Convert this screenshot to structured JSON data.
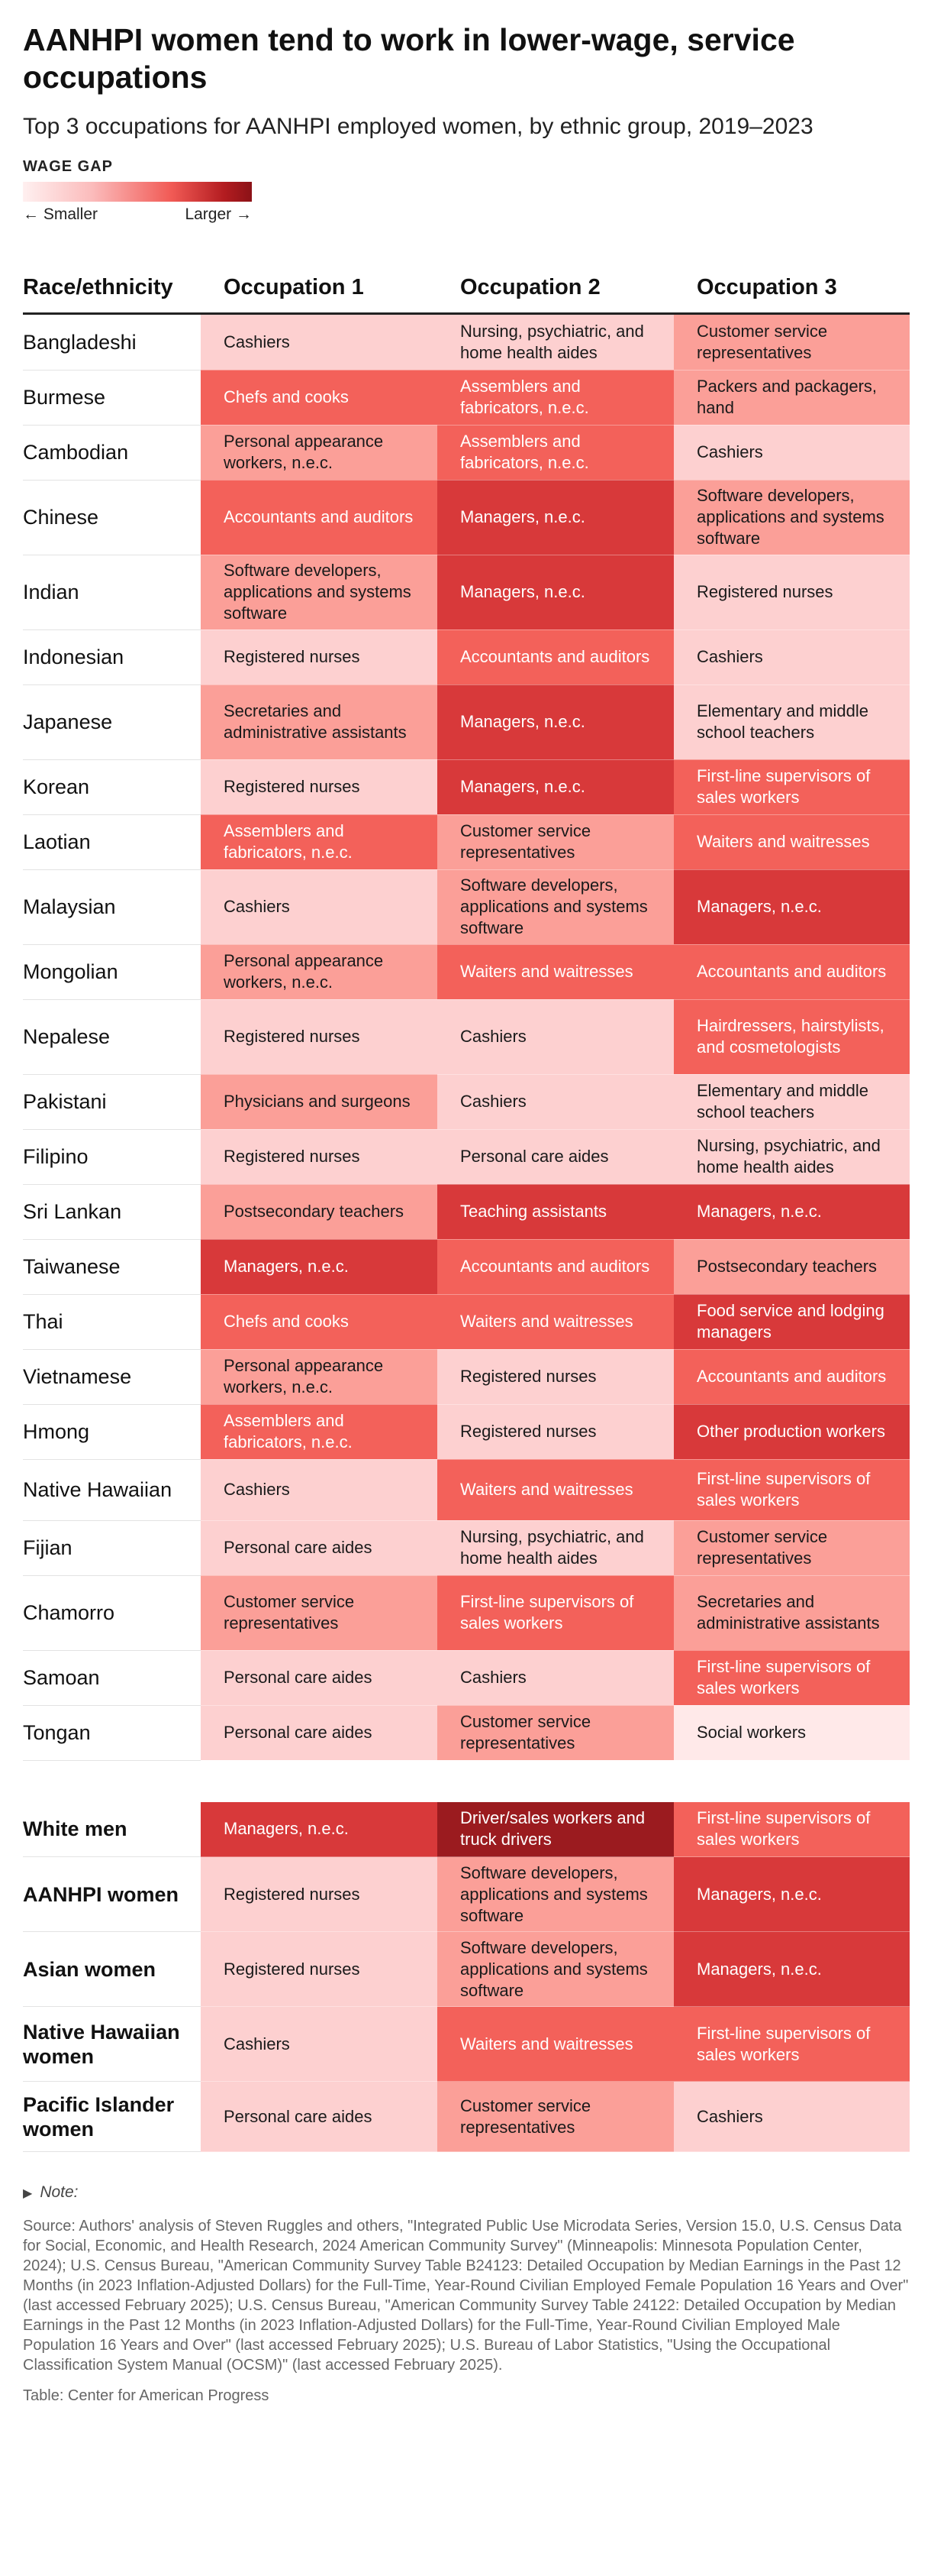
{
  "title": "AANHPI women tend to work in lower-wage, service occupations",
  "subtitle": "Top 3 occupations for AANHPI employed women, by ethnic group, 2019–2023",
  "legend": {
    "title": "WAGE GAP",
    "smaller": "← Smaller",
    "larger": "Larger →"
  },
  "headers": [
    "Race/ethnicity",
    "Occupation 1",
    "Occupation 2",
    "Occupation 3"
  ],
  "level_colors": {
    "0": "#ffe9e9",
    "1": "#fdd0d0",
    "2": "#fb9f98",
    "3": "#f3615a",
    "4": "#d8393a",
    "5": "#9b1b1f"
  },
  "chart_data": {
    "type": "table",
    "color_scale": "wage gap",
    "groups": [
      {
        "rows": [
          {
            "name": "Bangladeshi",
            "cells": [
              {
                "text": "Cashiers",
                "level": 1
              },
              {
                "text": "Nursing, psychiatric, and home health aides",
                "level": 1
              },
              {
                "text": "Customer service representatives",
                "level": 2
              }
            ]
          },
          {
            "name": "Burmese",
            "cells": [
              {
                "text": "Chefs and cooks",
                "level": 3
              },
              {
                "text": "Assemblers and fabricators, n.e.c.",
                "level": 3
              },
              {
                "text": "Packers and packagers, hand",
                "level": 2
              }
            ]
          },
          {
            "name": "Cambodian",
            "cells": [
              {
                "text": "Personal appearance workers, n.e.c.",
                "level": 2
              },
              {
                "text": "Assemblers and fabricators, n.e.c.",
                "level": 3
              },
              {
                "text": "Cashiers",
                "level": 1
              }
            ]
          },
          {
            "name": "Chinese",
            "cells": [
              {
                "text": "Accountants and auditors",
                "level": 3
              },
              {
                "text": "Managers, n.e.c.",
                "level": 4
              },
              {
                "text": "Software developers, applications and systems software",
                "level": 2
              }
            ]
          },
          {
            "name": "Indian",
            "cells": [
              {
                "text": "Software developers, applications and systems software",
                "level": 2
              },
              {
                "text": "Managers, n.e.c.",
                "level": 4
              },
              {
                "text": "Registered nurses",
                "level": 1
              }
            ]
          },
          {
            "name": "Indonesian",
            "cells": [
              {
                "text": "Registered nurses",
                "level": 1
              },
              {
                "text": "Accountants and auditors",
                "level": 3
              },
              {
                "text": "Cashiers",
                "level": 1
              }
            ]
          },
          {
            "name": "Japanese",
            "cells": [
              {
                "text": "Secretaries and administrative assistants",
                "level": 2
              },
              {
                "text": "Managers, n.e.c.",
                "level": 4
              },
              {
                "text": "Elementary and middle school teachers",
                "level": 1
              }
            ]
          },
          {
            "name": "Korean",
            "cells": [
              {
                "text": "Registered nurses",
                "level": 1
              },
              {
                "text": "Managers, n.e.c.",
                "level": 4
              },
              {
                "text": "First-line supervisors of sales workers",
                "level": 3
              }
            ]
          },
          {
            "name": "Laotian",
            "cells": [
              {
                "text": "Assemblers and fabricators, n.e.c.",
                "level": 3
              },
              {
                "text": "Customer service representatives",
                "level": 2
              },
              {
                "text": "Waiters and waitresses",
                "level": 3
              }
            ]
          },
          {
            "name": "Malaysian",
            "cells": [
              {
                "text": "Cashiers",
                "level": 1
              },
              {
                "text": "Software developers, applications and systems software",
                "level": 2
              },
              {
                "text": "Managers, n.e.c.",
                "level": 4
              }
            ]
          },
          {
            "name": "Mongolian",
            "cells": [
              {
                "text": "Personal appearance workers, n.e.c.",
                "level": 2
              },
              {
                "text": "Waiters and waitresses",
                "level": 3
              },
              {
                "text": "Accountants and auditors",
                "level": 3
              }
            ]
          },
          {
            "name": "Nepalese",
            "cells": [
              {
                "text": "Registered nurses",
                "level": 1
              },
              {
                "text": "Cashiers",
                "level": 1
              },
              {
                "text": "Hairdressers, hairstylists, and cosmetologists",
                "level": 3
              }
            ]
          },
          {
            "name": "Pakistani",
            "cells": [
              {
                "text": "Physicians and surgeons",
                "level": 2
              },
              {
                "text": "Cashiers",
                "level": 1
              },
              {
                "text": "Elementary and middle school teachers",
                "level": 1
              }
            ]
          },
          {
            "name": "Filipino",
            "cells": [
              {
                "text": "Registered nurses",
                "level": 1
              },
              {
                "text": "Personal care aides",
                "level": 1
              },
              {
                "text": "Nursing, psychiatric, and home health aides",
                "level": 1
              }
            ]
          },
          {
            "name": "Sri Lankan",
            "cells": [
              {
                "text": "Postsecondary teachers",
                "level": 2
              },
              {
                "text": "Teaching assistants",
                "level": 4
              },
              {
                "text": "Managers, n.e.c.",
                "level": 4
              }
            ]
          },
          {
            "name": "Taiwanese",
            "cells": [
              {
                "text": "Managers, n.e.c.",
                "level": 4
              },
              {
                "text": "Accountants and auditors",
                "level": 3
              },
              {
                "text": "Postsecondary teachers",
                "level": 2
              }
            ]
          },
          {
            "name": "Thai",
            "cells": [
              {
                "text": "Chefs and cooks",
                "level": 3
              },
              {
                "text": "Waiters and waitresses",
                "level": 3
              },
              {
                "text": "Food service and lodging managers",
                "level": 4
              }
            ]
          },
          {
            "name": "Vietnamese",
            "cells": [
              {
                "text": "Personal appearance workers, n.e.c.",
                "level": 2
              },
              {
                "text": "Registered nurses",
                "level": 1
              },
              {
                "text": "Accountants and auditors",
                "level": 3
              }
            ]
          },
          {
            "name": "Hmong",
            "cells": [
              {
                "text": "Assemblers and fabricators, n.e.c.",
                "level": 3
              },
              {
                "text": "Registered nurses",
                "level": 1
              },
              {
                "text": "Other production workers",
                "level": 4
              }
            ]
          },
          {
            "name": "Native Hawaiian",
            "cells": [
              {
                "text": "Cashiers",
                "level": 1
              },
              {
                "text": "Waiters and waitresses",
                "level": 3
              },
              {
                "text": "First-line supervisors of sales workers",
                "level": 3
              }
            ]
          },
          {
            "name": "Fijian",
            "cells": [
              {
                "text": "Personal care aides",
                "level": 1
              },
              {
                "text": "Nursing, psychiatric, and home health aides",
                "level": 1
              },
              {
                "text": "Customer service representatives",
                "level": 2
              }
            ]
          },
          {
            "name": "Chamorro",
            "cells": [
              {
                "text": "Customer service representatives",
                "level": 2
              },
              {
                "text": "First-line supervisors of sales workers",
                "level": 3
              },
              {
                "text": "Secretaries and administrative assistants",
                "level": 2
              }
            ]
          },
          {
            "name": "Samoan",
            "cells": [
              {
                "text": "Personal care aides",
                "level": 1
              },
              {
                "text": "Cashiers",
                "level": 1
              },
              {
                "text": "First-line supervisors of sales workers",
                "level": 3
              }
            ]
          },
          {
            "name": "Tongan",
            "cells": [
              {
                "text": "Personal care aides",
                "level": 1
              },
              {
                "text": "Customer service representatives",
                "level": 2
              },
              {
                "text": "Social workers",
                "level": 0
              }
            ]
          }
        ]
      },
      {
        "bold_names": true,
        "rows": [
          {
            "name": "White men",
            "cells": [
              {
                "text": "Managers, n.e.c.",
                "level": 4
              },
              {
                "text": "Driver/sales workers and truck drivers",
                "level": 5
              },
              {
                "text": "First-line supervisors of sales workers",
                "level": 3
              }
            ]
          },
          {
            "name": "AANHPI women",
            "cells": [
              {
                "text": "Registered nurses",
                "level": 1
              },
              {
                "text": "Software developers, applications and systems software",
                "level": 2
              },
              {
                "text": "Managers, n.e.c.",
                "level": 4
              }
            ]
          },
          {
            "name": "Asian women",
            "cells": [
              {
                "text": "Registered nurses",
                "level": 1
              },
              {
                "text": "Software developers, applications and systems software",
                "level": 2
              },
              {
                "text": "Managers, n.e.c.",
                "level": 4
              }
            ]
          },
          {
            "name": "Native Hawaiian women",
            "cells": [
              {
                "text": "Cashiers",
                "level": 1
              },
              {
                "text": "Waiters and waitresses",
                "level": 3
              },
              {
                "text": "First-line supervisors of sales workers",
                "level": 3
              }
            ]
          },
          {
            "name": "Pacific Islander women",
            "cells": [
              {
                "text": "Personal care aides",
                "level": 1
              },
              {
                "text": "Customer service representatives",
                "level": 2
              },
              {
                "text": "Cashiers",
                "level": 1
              }
            ]
          }
        ]
      }
    ]
  },
  "note": {
    "label": "Note:",
    "source": "Source: Authors' analysis of Steven Ruggles and others, \"Integrated Public Use Microdata Series, Version 15.0, U.S. Census Data for Social, Economic, and Health Research, 2024 American Community Survey\" (Minneapolis: Minnesota Population Center, 2024); U.S. Census Bureau, \"American Community Survey Table B24123: Detailed Occupation by Median Earnings in the Past 12 Months (in 2023 Inflation-Adjusted Dollars) for the Full-Time, Year-Round Civilian Employed Female Population 16 Years and Over\" (last accessed February 2025); U.S. Census Bureau, \"American Community Survey Table 24122: Detailed Occupation by Median Earnings in the Past 12 Months (in 2023 Inflation-Adjusted Dollars) for the Full-Time, Year-Round Civilian Employed Male Population 16 Years and Over\" (last accessed February 2025); U.S. Bureau of Labor Statistics, \"Using the Occupational Classification System Manual (OCSM)\" (last accessed February 2025).",
    "credit": "Table: Center for American Progress"
  }
}
